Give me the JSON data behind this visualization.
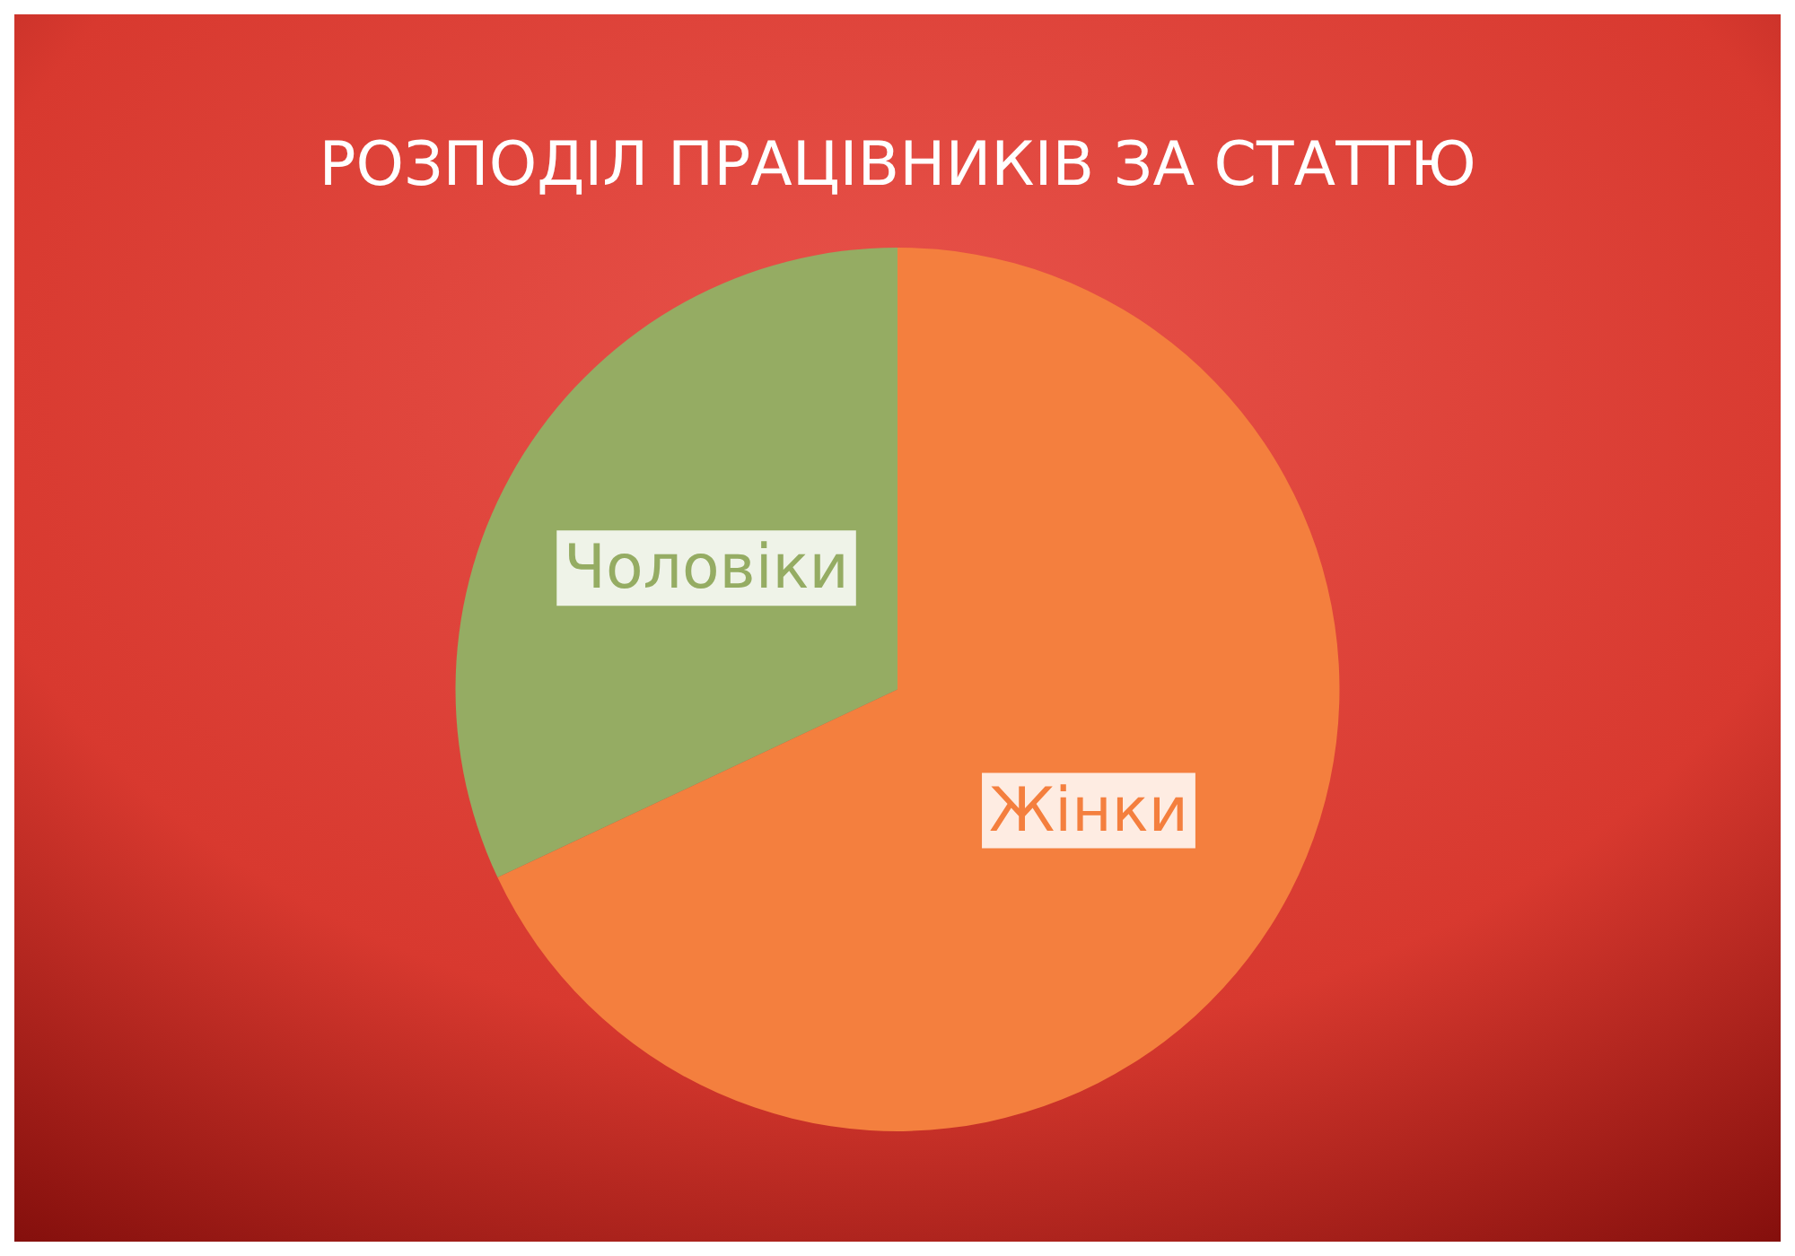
{
  "chart_data": {
    "type": "pie",
    "title": "РОЗПОДІЛ ПРАЦІВНИКІВ ЗА СТАТТЮ",
    "categories": [
      "Жінки",
      "Чоловіки"
    ],
    "values": [
      68,
      32
    ],
    "colors": [
      "#f47f3e",
      "#95ac63"
    ],
    "legend": false
  }
}
